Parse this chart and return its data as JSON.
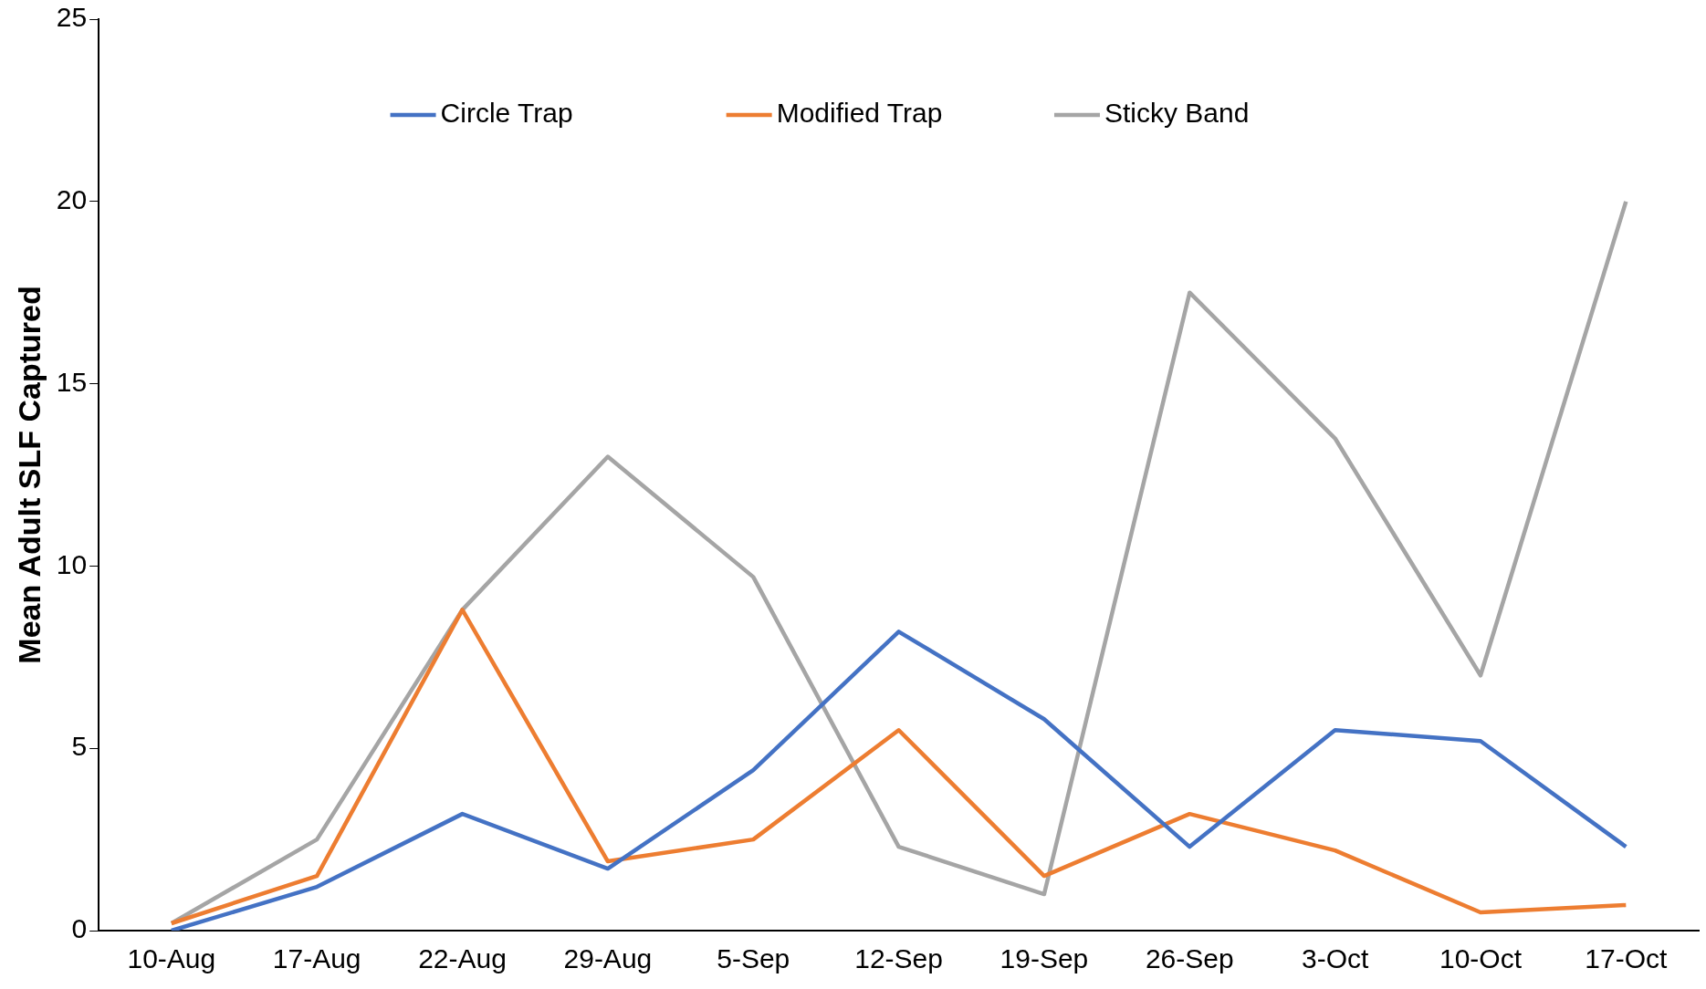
{
  "chart_data": {
    "type": "line",
    "ylabel": "Mean Adult SLF Captured",
    "categories": [
      "10-Aug",
      "17-Aug",
      "22-Aug",
      "29-Aug",
      "5-Sep",
      "12-Sep",
      "19-Sep",
      "26-Sep",
      "3-Oct",
      "10-Oct",
      "17-Oct"
    ],
    "series": [
      {
        "name": "Circle Trap",
        "color": "#4472c4",
        "values": [
          0,
          1.2,
          3.2,
          1.7,
          4.4,
          8.2,
          5.8,
          2.3,
          5.5,
          5.2,
          2.3
        ]
      },
      {
        "name": "Modified Trap",
        "color": "#ed7d31",
        "values": [
          0.2,
          1.5,
          8.8,
          1.9,
          2.5,
          5.5,
          1.5,
          3.2,
          2.2,
          0.5,
          0.7
        ]
      },
      {
        "name": "Sticky Band",
        "color": "#a5a5a5",
        "values": [
          0.2,
          2.5,
          8.8,
          13,
          9.7,
          2.3,
          1,
          17.5,
          13.5,
          7,
          20
        ]
      }
    ],
    "ylim": [
      0,
      25
    ],
    "yticks": [
      0,
      5,
      10,
      15,
      20,
      25
    ],
    "grid": false,
    "legend": "top",
    "marker": "none",
    "line_style": "solid"
  }
}
